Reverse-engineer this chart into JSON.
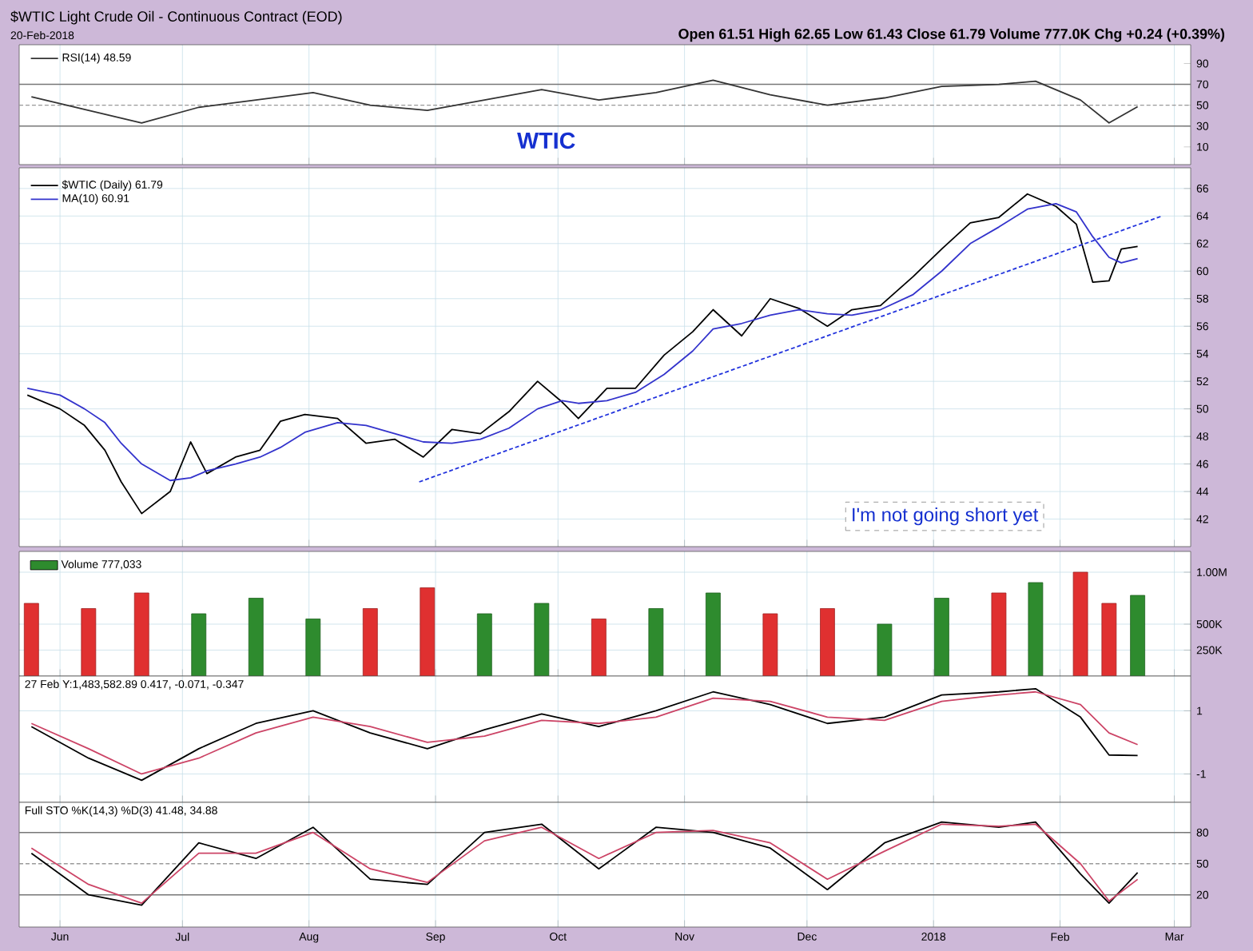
{
  "chart_data": [
    {
      "type": "line",
      "title": "$WTIC Light Crude Oil - Continuous Contract (EOD)",
      "subtitle": "20-Feb-2018",
      "annotations": [
        "Open 61.51 High 62.65 Low 61.43 Close 61.79 Volume 777.0K Chg +0.24 (+0.39%)",
        "WTIC"
      ],
      "x": [
        "2017-05-25",
        "2017-06-08",
        "2017-06-21",
        "2017-07-05",
        "2017-07-19",
        "2017-08-02",
        "2017-08-16",
        "2017-08-30",
        "2017-09-13",
        "2017-09-27",
        "2017-10-11",
        "2017-10-25",
        "2017-11-08",
        "2017-11-22",
        "2017-12-06",
        "2017-12-20",
        "2018-01-03",
        "2018-01-17",
        "2018-01-26",
        "2018-02-06",
        "2018-02-13",
        "2018-02-20"
      ],
      "series": [
        {
          "name": "RSI(14) 48.59",
          "color": "#333333",
          "values": [
            58,
            45,
            33,
            48,
            55,
            62,
            50,
            45,
            55,
            65,
            55,
            62,
            74,
            60,
            50,
            57,
            68,
            70,
            73,
            55,
            33,
            48.59
          ]
        }
      ],
      "xlim": [
        "2017-05-22",
        "2018-03-05"
      ],
      "xticks": [
        {
          "value": "2017-06-01",
          "label": null
        },
        {
          "value": "2017-07-01",
          "label": null
        },
        {
          "value": "2017-08-01",
          "label": null
        },
        {
          "value": "2017-09-01",
          "label": null
        },
        {
          "value": "2017-10-01",
          "label": null
        },
        {
          "value": "2017-11-01",
          "label": null
        },
        {
          "value": "2017-12-01",
          "label": null
        },
        {
          "value": "2018-01-01",
          "label": null
        },
        {
          "value": "2018-02-01",
          "label": null
        },
        {
          "value": "2018-03-01",
          "label": null
        }
      ],
      "ylim": [
        -7,
        108
      ],
      "yticks": [
        10,
        30,
        50,
        70,
        90
      ],
      "tick_labels": "y",
      "grid": "x",
      "legend": "top left",
      "ref_lines": [
        {
          "axis": "y",
          "value": 70,
          "color": "#777777"
        },
        {
          "axis": "y",
          "value": 30,
          "color": "#777777"
        },
        {
          "axis": "y",
          "value": 50,
          "color": "#999999",
          "line_style": "dashed"
        }
      ]
    },
    {
      "type": "line",
      "annotations": [
        "I'm not going short yet"
      ],
      "x": [
        "2017-05-24",
        "2017-06-01",
        "2017-06-07",
        "2017-06-12",
        "2017-06-16",
        "2017-06-21",
        "2017-06-28",
        "2017-07-03",
        "2017-07-07",
        "2017-07-14",
        "2017-07-20",
        "2017-07-25",
        "2017-07-31",
        "2017-08-08",
        "2017-08-15",
        "2017-08-22",
        "2017-08-29",
        "2017-09-05",
        "2017-09-12",
        "2017-09-19",
        "2017-09-26",
        "2017-10-02",
        "2017-10-06",
        "2017-10-13",
        "2017-10-20",
        "2017-10-27",
        "2017-11-03",
        "2017-11-08",
        "2017-11-15",
        "2017-11-22",
        "2017-11-29",
        "2017-12-06",
        "2017-12-12",
        "2017-12-19",
        "2017-12-27",
        "2018-01-03",
        "2018-01-10",
        "2018-01-17",
        "2018-01-24",
        "2018-01-31",
        "2018-02-05",
        "2018-02-09",
        "2018-02-13",
        "2018-02-16",
        "2018-02-20"
      ],
      "series": [
        {
          "name": "$WTIC (Daily) 61.79",
          "color": "#000000",
          "values": [
            51,
            50,
            48.8,
            47,
            44.7,
            42.4,
            44,
            47.6,
            45.3,
            46.5,
            47,
            49.1,
            49.6,
            49.3,
            47.5,
            47.8,
            46.5,
            48.5,
            48.2,
            49.8,
            52,
            50.5,
            49.3,
            51.5,
            51.5,
            53.9,
            55.6,
            57.2,
            55.3,
            58,
            57.3,
            56,
            57.2,
            57.5,
            59.6,
            61.6,
            63.5,
            63.9,
            65.6,
            64.7,
            63.4,
            59.2,
            59.3,
            61.6,
            61.79
          ]
        },
        {
          "name": "MA(10) 60.91",
          "color": "#3333cc",
          "values": [
            51.5,
            51,
            50,
            49,
            47.5,
            46,
            44.8,
            45,
            45.5,
            46,
            46.5,
            47.2,
            48.3,
            49,
            48.8,
            48.2,
            47.6,
            47.5,
            47.8,
            48.6,
            50,
            50.6,
            50.4,
            50.6,
            51.2,
            52.5,
            54.2,
            55.8,
            56.2,
            56.8,
            57.2,
            56.9,
            56.8,
            57.2,
            58.3,
            60,
            62,
            63.2,
            64.5,
            64.9,
            64.3,
            62.5,
            61,
            60.6,
            60.91
          ]
        },
        {
          "color": "#2233dd",
          "line_style": "dashed",
          "x": [
            "2017-08-28",
            "2018-02-26"
          ],
          "values": [
            44.7,
            64.0
          ]
        }
      ],
      "xlim": [
        "2017-05-22",
        "2018-03-05"
      ],
      "xticks": [
        {
          "value": "2017-06-01",
          "label": null
        },
        {
          "value": "2017-07-01",
          "label": null
        },
        {
          "value": "2017-08-01",
          "label": null
        },
        {
          "value": "2017-09-01",
          "label": null
        },
        {
          "value": "2017-10-01",
          "label": null
        },
        {
          "value": "2017-11-01",
          "label": null
        },
        {
          "value": "2017-12-01",
          "label": null
        },
        {
          "value": "2018-01-01",
          "label": null
        },
        {
          "value": "2018-02-01",
          "label": null
        },
        {
          "value": "2018-03-01",
          "label": null
        }
      ],
      "ylim": [
        40,
        67.5
      ],
      "yticks": [
        42,
        44,
        46,
        48,
        50,
        52,
        54,
        56,
        58,
        60,
        62,
        64,
        66
      ],
      "tick_labels": "y",
      "grid": true,
      "legend": "top left"
    },
    {
      "type": "bar",
      "x": [
        "2017-05-25",
        "2017-06-08",
        "2017-06-21",
        "2017-07-05",
        "2017-07-19",
        "2017-08-02",
        "2017-08-16",
        "2017-08-30",
        "2017-09-13",
        "2017-09-27",
        "2017-10-11",
        "2017-10-25",
        "2017-11-08",
        "2017-11-22",
        "2017-12-06",
        "2017-12-20",
        "2018-01-03",
        "2018-01-17",
        "2018-01-26",
        "2018-02-06",
        "2018-02-13",
        "2018-02-20"
      ],
      "series": [
        {
          "name": "Volume 777,033",
          "color": "#2e8b2e",
          "values": [
            700000,
            650000,
            800000,
            600000,
            750000,
            550000,
            650000,
            850000,
            600000,
            700000,
            550000,
            650000,
            800000,
            600000,
            650000,
            500000,
            750000,
            800000,
            900000,
            1000000,
            700000,
            777033
          ],
          "colors": [
            "#e03030",
            "#e03030",
            "#e03030",
            "#2e8b2e",
            "#2e8b2e",
            "#2e8b2e",
            "#e03030",
            "#e03030",
            "#2e8b2e",
            "#2e8b2e",
            "#e03030",
            "#2e8b2e",
            "#2e8b2e",
            "#e03030",
            "#e03030",
            "#2e8b2e",
            "#2e8b2e",
            "#e03030",
            "#2e8b2e",
            "#e03030",
            "#e03030",
            "#2e8b2e"
          ]
        }
      ],
      "xlim": [
        "2017-05-22",
        "2018-03-05"
      ],
      "xticks": [
        {
          "value": "2017-06-01",
          "label": null
        },
        {
          "value": "2017-07-01",
          "label": null
        },
        {
          "value": "2017-08-01",
          "label": null
        },
        {
          "value": "2017-09-01",
          "label": null
        },
        {
          "value": "2017-10-01",
          "label": null
        },
        {
          "value": "2017-11-01",
          "label": null
        },
        {
          "value": "2017-12-01",
          "label": null
        },
        {
          "value": "2018-01-01",
          "label": null
        },
        {
          "value": "2018-02-01",
          "label": null
        },
        {
          "value": "2018-03-01",
          "label": null
        }
      ],
      "ylim": [
        0,
        1200000
      ],
      "yticks": [
        {
          "value": 250000,
          "label": "250K"
        },
        {
          "value": 500000,
          "label": "500K"
        },
        {
          "value": 1000000,
          "label": "1.00M"
        }
      ],
      "tick_labels": "y",
      "grid": true,
      "legend": "top left"
    },
    {
      "type": "line",
      "title": "27 Feb Y:1,483,582.89 0.417, -0.071, -0.347",
      "x": [
        "2017-05-25",
        "2017-06-08",
        "2017-06-21",
        "2017-07-05",
        "2017-07-19",
        "2017-08-02",
        "2017-08-16",
        "2017-08-30",
        "2017-09-13",
        "2017-09-27",
        "2017-10-11",
        "2017-10-25",
        "2017-11-08",
        "2017-11-22",
        "2017-12-06",
        "2017-12-20",
        "2018-01-03",
        "2018-01-17",
        "2018-01-26",
        "2018-02-06",
        "2018-02-13",
        "2018-02-20"
      ],
      "series": [
        {
          "color": "#000000",
          "values": [
            0.5,
            -0.5,
            -1.2,
            -0.2,
            0.6,
            1.0,
            0.3,
            -0.2,
            0.4,
            0.9,
            0.5,
            1.0,
            1.6,
            1.2,
            0.6,
            0.8,
            1.5,
            1.6,
            1.7,
            0.8,
            -0.4,
            -0.417
          ]
        },
        {
          "color": "#cc4466",
          "values": [
            0.6,
            -0.2,
            -1.0,
            -0.5,
            0.3,
            0.8,
            0.5,
            0.0,
            0.2,
            0.7,
            0.6,
            0.8,
            1.4,
            1.3,
            0.8,
            0.7,
            1.3,
            1.5,
            1.6,
            1.2,
            0.3,
            -0.071
          ]
        }
      ],
      "xlim": [
        "2017-05-22",
        "2018-03-05"
      ],
      "xticks": [
        {
          "value": "2017-06-01",
          "label": null
        },
        {
          "value": "2017-07-01",
          "label": null
        },
        {
          "value": "2017-08-01",
          "label": null
        },
        {
          "value": "2017-09-01",
          "label": null
        },
        {
          "value": "2017-10-01",
          "label": null
        },
        {
          "value": "2017-11-01",
          "label": null
        },
        {
          "value": "2017-12-01",
          "label": null
        },
        {
          "value": "2018-01-01",
          "label": null
        },
        {
          "value": "2018-02-01",
          "label": null
        },
        {
          "value": "2018-03-01",
          "label": null
        }
      ],
      "ylim": [
        -1.9,
        2.1
      ],
      "yticks": [
        -1,
        1
      ],
      "tick_labels": "y",
      "grid": true
    },
    {
      "type": "line",
      "title": "Full STO %K(14,3) %D(3) 41.48, 34.88",
      "x": [
        "2017-05-25",
        "2017-06-08",
        "2017-06-21",
        "2017-07-05",
        "2017-07-19",
        "2017-08-02",
        "2017-08-16",
        "2017-08-30",
        "2017-09-13",
        "2017-09-27",
        "2017-10-11",
        "2017-10-25",
        "2017-11-08",
        "2017-11-22",
        "2017-12-06",
        "2017-12-20",
        "2018-01-03",
        "2018-01-17",
        "2018-01-26",
        "2018-02-06",
        "2018-02-13",
        "2018-02-20"
      ],
      "series": [
        {
          "color": "#000000",
          "values": [
            60,
            20,
            10,
            70,
            55,
            85,
            35,
            30,
            80,
            88,
            45,
            85,
            80,
            65,
            25,
            70,
            90,
            85,
            90,
            40,
            12,
            41.48
          ]
        },
        {
          "color": "#cc4466",
          "values": [
            65,
            30,
            12,
            60,
            60,
            80,
            45,
            32,
            72,
            85,
            55,
            80,
            82,
            70,
            35,
            62,
            88,
            86,
            88,
            50,
            14,
            34.88
          ]
        }
      ],
      "xlim": [
        "2017-05-22",
        "2018-03-05"
      ],
      "xticks": [
        {
          "value": "2017-06-01",
          "label": "Jun"
        },
        {
          "value": "2017-07-01",
          "label": "Jul"
        },
        {
          "value": "2017-08-01",
          "label": "Aug"
        },
        {
          "value": "2017-09-01",
          "label": "Sep"
        },
        {
          "value": "2017-10-01",
          "label": "Oct"
        },
        {
          "value": "2017-11-01",
          "label": "Nov"
        },
        {
          "value": "2017-12-01",
          "label": "Dec"
        },
        {
          "value": "2018-01-01",
          "label": "2018"
        },
        {
          "value": "2018-02-01",
          "label": "Feb"
        },
        {
          "value": "2018-03-01",
          "label": "Mar"
        }
      ],
      "ylim": [
        -11,
        109
      ],
      "yticks": [
        20,
        50,
        80
      ],
      "grid": "x",
      "ref_lines": [
        {
          "axis": "y",
          "value": 80,
          "color": "#777777"
        },
        {
          "axis": "y",
          "value": 20,
          "color": "#777777"
        },
        {
          "axis": "y",
          "value": 50,
          "color": "#999999",
          "line_style": "dashed"
        }
      ]
    }
  ]
}
